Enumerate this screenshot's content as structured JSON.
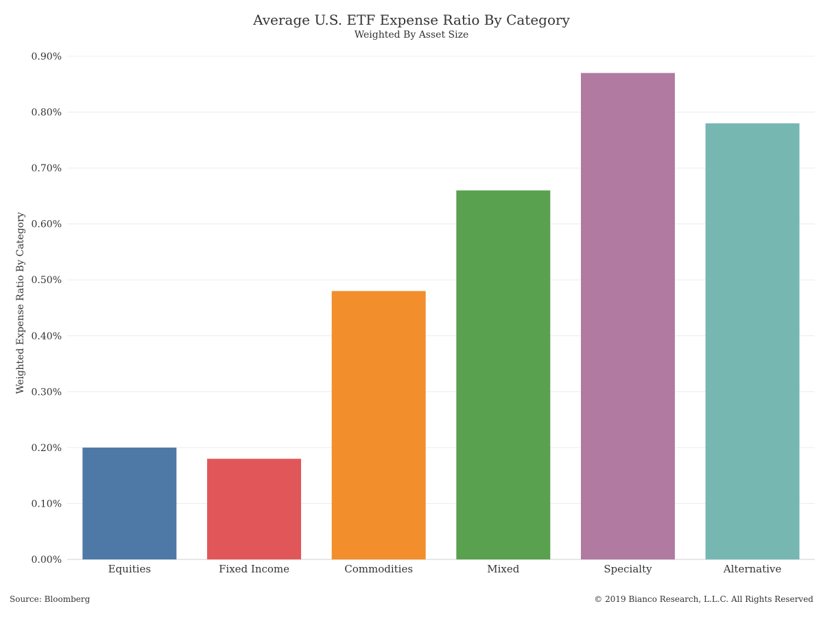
{
  "chart_data": {
    "type": "bar",
    "title": "Average U.S. ETF Expense Ratio By Category",
    "subtitle": "Weighted By Asset Size",
    "ylabel": "Weighted Expense Ratio By Category",
    "xlabel": "",
    "categories": [
      "Equities",
      "Fixed Income",
      "Commodities",
      "Mixed",
      "Specialty",
      "Alternative"
    ],
    "values": [
      0.2,
      0.18,
      0.48,
      0.66,
      0.87,
      0.78
    ],
    "colors": [
      "#4e79a7",
      "#e15759",
      "#f28e2b",
      "#59a14f",
      "#b07aa1",
      "#76b7b2"
    ],
    "ylim": [
      0,
      0.9
    ],
    "yticks": [
      0.0,
      0.1,
      0.2,
      0.3,
      0.4,
      0.5,
      0.6,
      0.7,
      0.8,
      0.9
    ],
    "ytick_labels": [
      "0.00%",
      "0.10%",
      "0.20%",
      "0.30%",
      "0.40%",
      "0.50%",
      "0.60%",
      "0.70%",
      "0.80%",
      "0.90%"
    ],
    "grid": true,
    "legend": "none"
  },
  "footer": {
    "source": "Source: Bloomberg",
    "copyright": "© 2019 Bianco Research, L.L.C. All Rights Reserved"
  }
}
